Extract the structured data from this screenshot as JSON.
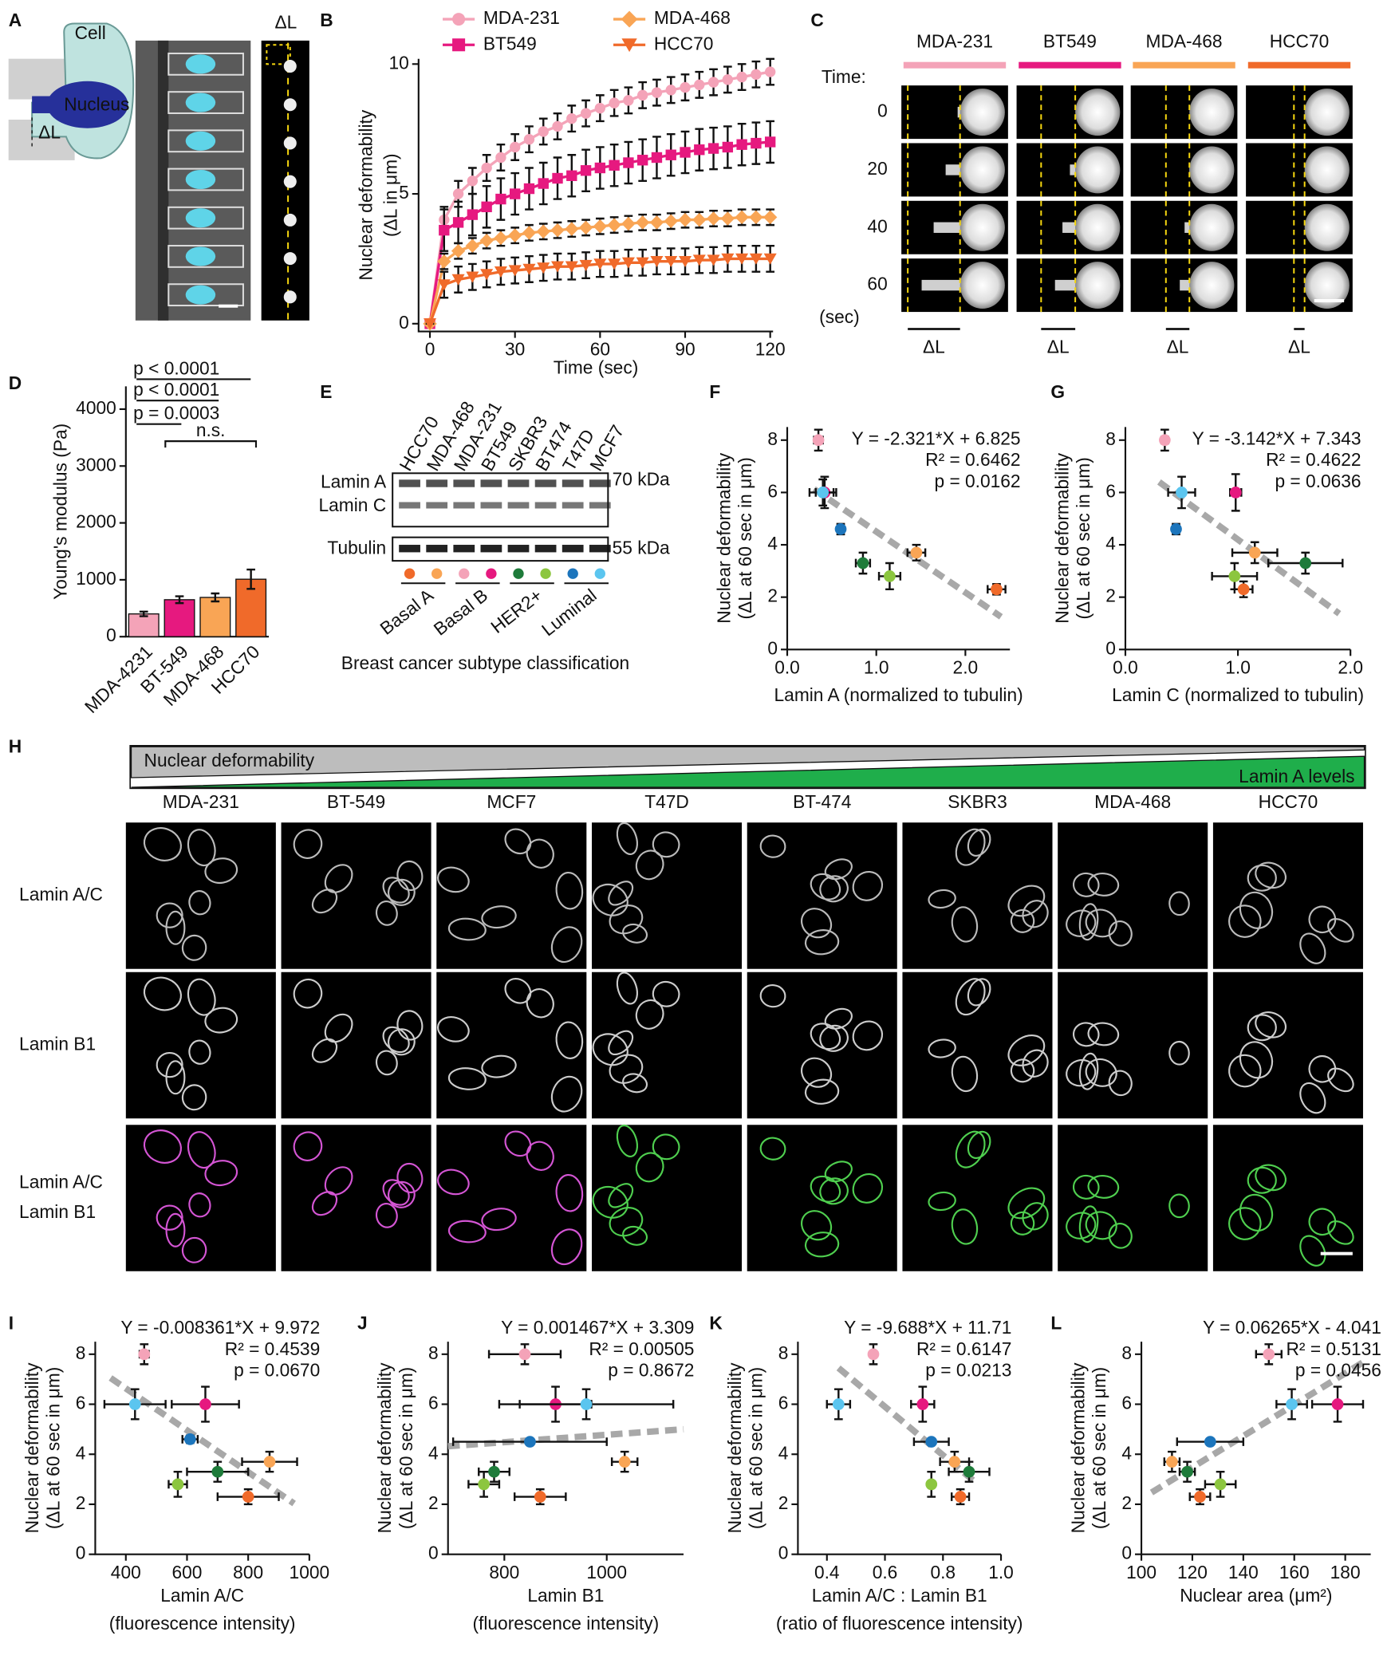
{
  "panel_labels": [
    "A",
    "B",
    "C",
    "D",
    "E",
    "F",
    "G",
    "H",
    "I",
    "J",
    "K",
    "L"
  ],
  "panel_a": {
    "cell": "Cell",
    "nucleus": "Nucleus",
    "delta_schematic": "ΔL",
    "delta_image": "ΔL"
  },
  "panel_c": {
    "columns": [
      {
        "name": "MDA-231",
        "color": "#f4a3b8"
      },
      {
        "name": "BT549",
        "color": "#e6197f"
      },
      {
        "name": "MDA-468",
        "color": "#f9a555"
      },
      {
        "name": "HCC70",
        "color": "#f06a2a"
      }
    ],
    "time_label": "Time:",
    "rows": [
      "0",
      "20",
      "40",
      "60"
    ],
    "unit_label": "(sec)",
    "delta_label": "ΔL"
  },
  "panel_e": {
    "lanes": [
      "HCC70",
      "MDA-468",
      "MDA-231",
      "BT549",
      "SKBR3",
      "BT474",
      "T47D",
      "MCF7"
    ],
    "lane_colors": [
      "#f06a2a",
      "#f9a555",
      "#f4a3b8",
      "#e6197f",
      "#1e7b3a",
      "#8cc63f",
      "#1c75bc",
      "#5bc5ef"
    ],
    "bands": [
      "Lamin A",
      "Lamin C",
      "Tubulin"
    ],
    "markers": [
      "70 kDa",
      "55 kDa"
    ],
    "subtypes": [
      "Basal A",
      "Basal B",
      "HER2+",
      "Luminal"
    ],
    "caption": "Breast cancer subtype classification"
  },
  "panel_h": {
    "gradient_top": "Nuclear deformability",
    "gradient_bottom": "Lamin A levels",
    "columns": [
      "MDA-231",
      "BT-549",
      "MCF7",
      "T47D",
      "BT-474",
      "SKBR3",
      "MDA-468",
      "HCC70"
    ],
    "row_labels": [
      [
        "Lamin A/C"
      ],
      [
        "Lamin B1"
      ],
      [
        "Lamin A/C",
        "Lamin B1"
      ]
    ]
  },
  "chart_data": [
    {
      "type": "line",
      "xlabel": [
        "Time (sec)"
      ],
      "ylabel": [
        "Nuclear deformability",
        "(ΔL in μm)"
      ],
      "x": [
        0,
        5,
        10,
        15,
        20,
        25,
        30,
        35,
        40,
        45,
        50,
        55,
        60,
        65,
        70,
        75,
        80,
        85,
        90,
        95,
        100,
        105,
        110,
        115,
        120
      ],
      "xlim": [
        -4,
        121
      ],
      "ylim": [
        -0.3,
        10.2
      ],
      "xticks": [
        0,
        30,
        60,
        90,
        120
      ],
      "yticks": [
        0,
        5,
        10
      ],
      "series": [
        {
          "name": "MDA-231",
          "color": "#f4a3b8",
          "marker": "circle",
          "values": [
            0,
            4.0,
            5.0,
            5.5,
            6.0,
            6.4,
            6.8,
            7.1,
            7.4,
            7.6,
            7.9,
            8.1,
            8.3,
            8.5,
            8.6,
            8.8,
            8.9,
            9.0,
            9.1,
            9.2,
            9.3,
            9.4,
            9.5,
            9.6,
            9.7
          ],
          "errors": [
            0,
            0.5,
            0.5,
            0.5,
            0.5,
            0.5,
            0.5,
            0.5,
            0.5,
            0.5,
            0.5,
            0.5,
            0.5,
            0.5,
            0.5,
            0.5,
            0.5,
            0.5,
            0.5,
            0.5,
            0.5,
            0.5,
            0.5,
            0.5,
            0.5
          ]
        },
        {
          "name": "BT549",
          "color": "#e6197f",
          "marker": "square",
          "values": [
            0,
            3.6,
            3.9,
            4.2,
            4.5,
            4.8,
            5.0,
            5.2,
            5.4,
            5.6,
            5.7,
            5.9,
            6.0,
            6.1,
            6.2,
            6.3,
            6.4,
            6.5,
            6.6,
            6.7,
            6.75,
            6.8,
            6.9,
            6.95,
            7.0
          ],
          "errors": [
            0,
            0.8,
            0.8,
            0.8,
            0.8,
            0.8,
            0.8,
            0.8,
            0.8,
            0.8,
            0.8,
            0.8,
            0.8,
            0.8,
            0.8,
            0.8,
            0.8,
            0.8,
            0.8,
            0.8,
            0.8,
            0.8,
            0.8,
            0.8,
            0.8
          ]
        },
        {
          "name": "MDA-468",
          "color": "#f9a555",
          "marker": "diamond",
          "values": [
            0,
            2.4,
            2.8,
            3.0,
            3.2,
            3.3,
            3.4,
            3.5,
            3.55,
            3.6,
            3.65,
            3.7,
            3.75,
            3.8,
            3.85,
            3.9,
            3.9,
            3.95,
            4.0,
            4.0,
            4.05,
            4.05,
            4.1,
            4.1,
            4.1
          ],
          "errors": [
            0,
            0.3,
            0.3,
            0.3,
            0.3,
            0.3,
            0.3,
            0.3,
            0.3,
            0.3,
            0.3,
            0.3,
            0.3,
            0.3,
            0.3,
            0.3,
            0.3,
            0.3,
            0.3,
            0.3,
            0.3,
            0.3,
            0.3,
            0.3,
            0.3
          ]
        },
        {
          "name": "HCC70",
          "color": "#f06a2a",
          "marker": "triangle-down",
          "values": [
            0,
            1.5,
            1.7,
            1.8,
            1.9,
            2.0,
            2.05,
            2.1,
            2.15,
            2.2,
            2.2,
            2.25,
            2.3,
            2.3,
            2.35,
            2.35,
            2.4,
            2.4,
            2.4,
            2.45,
            2.45,
            2.5,
            2.5,
            2.5,
            2.5
          ],
          "errors": [
            0,
            0.5,
            0.5,
            0.5,
            0.5,
            0.5,
            0.5,
            0.5,
            0.5,
            0.5,
            0.5,
            0.5,
            0.5,
            0.5,
            0.5,
            0.5,
            0.5,
            0.5,
            0.5,
            0.5,
            0.5,
            0.5,
            0.5,
            0.5,
            0.5
          ]
        }
      ]
    },
    {
      "type": "bar",
      "ylabel": [
        "Young's modulus (Pa)"
      ],
      "categories": [
        "MDA-4231",
        "BT-549",
        "MDA-468",
        "HCC70"
      ],
      "values": [
        400,
        650,
        690,
        1010
      ],
      "errors": [
        40,
        60,
        70,
        170
      ],
      "colors": [
        "#f4a3b8",
        "#e6197f",
        "#f9a555",
        "#f06a2a"
      ],
      "ylim": [
        0,
        4400
      ],
      "yticks": [
        0,
        1000,
        2000,
        3000,
        4000
      ],
      "annotations": [
        "p < 0.0001",
        "p < 0.0001",
        "p = 0.0003",
        "n.s."
      ]
    },
    {
      "type": "scatter",
      "xlabel": [
        "Lamin A (normalized to tubulin)"
      ],
      "ylabel": [
        "Nuclear deformability",
        "(ΔL at 60 sec in μm)"
      ],
      "equation": [
        "Y = -2.321*X + 6.825",
        "R² = 0.6462",
        "p = 0.0162"
      ],
      "xlim": [
        0,
        2.5
      ],
      "ylim": [
        0,
        8.5
      ],
      "xticks": [
        {
          "value": 0,
          "label": "0.0"
        },
        {
          "value": 1,
          "label": "1.0"
        },
        {
          "value": 2,
          "label": "2.0"
        }
      ],
      "yticks": [
        0,
        2,
        4,
        6,
        8
      ],
      "points": {
        "x": [
          0.35,
          0.42,
          0.4,
          0.6,
          0.85,
          1.15,
          1.45,
          2.35
        ],
        "y": [
          8.0,
          6.0,
          6.0,
          4.6,
          3.3,
          2.8,
          3.7,
          2.3
        ],
        "xerr": [
          0.05,
          0.1,
          0.15,
          0.03,
          0.08,
          0.12,
          0.1,
          0.1
        ],
        "yerr": [
          0.4,
          0.6,
          0.5,
          0.2,
          0.4,
          0.5,
          0.3,
          0.2
        ],
        "colors": [
          "#f4a3b8",
          "#e6197f",
          "#5bc5ef",
          "#1c75bc",
          "#1e7b3a",
          "#8cc63f",
          "#f9a555",
          "#f06a2a"
        ]
      },
      "trendline": {
        "x": [
          0.3,
          2.4
        ],
        "y": [
          6.13,
          1.25
        ]
      }
    },
    {
      "type": "scatter",
      "xlabel": [
        "Lamin C (normalized to tubulin)"
      ],
      "ylabel": [
        "Nuclear deformability",
        "(ΔL at 60 sec in μm)"
      ],
      "equation": [
        "Y = -3.142*X + 7.343",
        "R² = 0.4622",
        "p = 0.0636"
      ],
      "xlim": [
        0,
        2.0
      ],
      "ylim": [
        0,
        8.5
      ],
      "xticks": [
        {
          "value": 0,
          "label": "0.0"
        },
        {
          "value": 1,
          "label": "1.0"
        },
        {
          "value": 2,
          "label": "2.0"
        }
      ],
      "yticks": [
        0,
        2,
        4,
        6,
        8
      ],
      "points": {
        "x": [
          0.35,
          0.98,
          0.5,
          0.45,
          1.6,
          0.97,
          1.15,
          1.05
        ],
        "y": [
          8.0,
          6.0,
          6.0,
          4.6,
          3.3,
          2.8,
          3.7,
          2.3
        ],
        "xerr": [
          0.03,
          0.05,
          0.12,
          0.03,
          0.33,
          0.2,
          0.2,
          0.08
        ],
        "yerr": [
          0.4,
          0.7,
          0.6,
          0.2,
          0.4,
          0.5,
          0.4,
          0.3
        ],
        "colors": [
          "#f4a3b8",
          "#e6197f",
          "#5bc5ef",
          "#1c75bc",
          "#1e7b3a",
          "#8cc63f",
          "#f9a555",
          "#f06a2a"
        ]
      },
      "trendline": {
        "x": [
          0.3,
          1.9
        ],
        "y": [
          6.4,
          1.37
        ]
      }
    },
    {
      "type": "scatter",
      "xlabel": [
        "Lamin A/C",
        "(fluorescence intensity)"
      ],
      "ylabel": [
        "Nuclear deformability",
        "(ΔL at 60 sec in μm)"
      ],
      "equation": [
        "Y = -0.008361*X + 9.972",
        "R² = 0.4539",
        "p = 0.0670"
      ],
      "xlim": [
        300,
        1000
      ],
      "ylim": [
        0,
        8.5
      ],
      "xticks": [
        400,
        600,
        800,
        1000
      ],
      "yticks": [
        0,
        2,
        4,
        6,
        8
      ],
      "points": {
        "x": [
          460,
          660,
          430,
          610,
          700,
          570,
          870,
          800
        ],
        "y": [
          8.0,
          6.0,
          6.0,
          4.6,
          3.3,
          2.8,
          3.7,
          2.3
        ],
        "xerr": [
          15,
          110,
          100,
          25,
          100,
          30,
          90,
          100
        ],
        "yerr": [
          0.4,
          0.7,
          0.6,
          0.15,
          0.4,
          0.5,
          0.4,
          0.3
        ],
        "colors": [
          "#f4a3b8",
          "#e6197f",
          "#5bc5ef",
          "#1c75bc",
          "#1e7b3a",
          "#8cc63f",
          "#f9a555",
          "#f06a2a"
        ]
      },
      "trendline": {
        "x": [
          350,
          950
        ],
        "y": [
          7.05,
          2.03
        ]
      }
    },
    {
      "type": "scatter",
      "xlabel": [
        "Lamin B1",
        "(fluorescence intensity)"
      ],
      "ylabel": [
        "Nuclear deformability",
        "(ΔL at 60 sec in μm)"
      ],
      "equation": [
        "Y = 0.001467*X + 3.309",
        "R² = 0.00505",
        "p = 0.8672"
      ],
      "xlim": [
        690,
        1150
      ],
      "ylim": [
        0,
        8.5
      ],
      "xticks": [
        800,
        1000
      ],
      "yticks": [
        0,
        2,
        4,
        6,
        8
      ],
      "points": {
        "x": [
          840,
          900,
          960,
          850,
          780,
          760,
          1035,
          870
        ],
        "y": [
          8.0,
          6.0,
          6.0,
          4.5,
          3.3,
          2.8,
          3.7,
          2.3
        ],
        "xerr": [
          70,
          70,
          170,
          150,
          30,
          30,
          25,
          50
        ],
        "yerr": [
          0.4,
          0.7,
          0.6,
          0.1,
          0.4,
          0.5,
          0.4,
          0.3
        ],
        "colors": [
          "#f4a3b8",
          "#e6197f",
          "#5bc5ef",
          "#1c75bc",
          "#1e7b3a",
          "#8cc63f",
          "#f9a555",
          "#f06a2a"
        ]
      },
      "trendline": {
        "x": [
          690,
          1150
        ],
        "y": [
          4.32,
          5.0
        ]
      }
    },
    {
      "type": "scatter",
      "xlabel": [
        "Lamin A/C : Lamin B1",
        "(ratio of fluorescence intensity)"
      ],
      "ylabel": [
        "Nuclear deformability",
        "(ΔL at 60 sec in μm)"
      ],
      "equation": [
        "Y = -9.688*X + 11.71",
        "R² = 0.6147",
        "p = 0.0213"
      ],
      "xlim": [
        0.3,
        1.0
      ],
      "ylim": [
        0,
        8.5
      ],
      "xticks": [
        0.4,
        0.6,
        0.8,
        {
          "value": 1,
          "label": "1.0"
        }
      ],
      "yticks": [
        0,
        2,
        4,
        6,
        8
      ],
      "points": {
        "x": [
          0.56,
          0.73,
          0.44,
          0.76,
          0.89,
          0.76,
          0.84,
          0.86
        ],
        "y": [
          8.0,
          6.0,
          6.0,
          4.5,
          3.3,
          2.8,
          3.7,
          2.3
        ],
        "xerr": [
          0.01,
          0.04,
          0.04,
          0.06,
          0.07,
          0.01,
          0.05,
          0.03
        ],
        "yerr": [
          0.4,
          0.7,
          0.6,
          0.1,
          0.4,
          0.5,
          0.4,
          0.3
        ],
        "colors": [
          "#f4a3b8",
          "#e6197f",
          "#5bc5ef",
          "#1c75bc",
          "#1e7b3a",
          "#8cc63f",
          "#f9a555",
          "#f06a2a"
        ]
      },
      "trendline": {
        "x": [
          0.44,
          0.92
        ],
        "y": [
          7.45,
          2.8
        ]
      }
    },
    {
      "type": "scatter",
      "xlabel": [
        "Nuclear area (μm²)"
      ],
      "ylabel": [
        "Nuclear deformability",
        "(ΔL at 60 sec in μm)"
      ],
      "equation": [
        "Y = 0.06265*X - 4.041",
        "R² = 0.5131",
        "p = 0.0456"
      ],
      "xlim": [
        100,
        190
      ],
      "ylim": [
        0,
        8.5
      ],
      "xticks": [
        100,
        120,
        140,
        160,
        180
      ],
      "yticks": [
        0,
        2,
        4,
        6,
        8
      ],
      "points": {
        "x": [
          150,
          177,
          159,
          127,
          118,
          131,
          112,
          123
        ],
        "y": [
          8.0,
          6.0,
          6.0,
          4.5,
          3.3,
          2.8,
          3.7,
          2.3
        ],
        "xerr": [
          5,
          10,
          6,
          13,
          3,
          6,
          3,
          4
        ],
        "yerr": [
          0.4,
          0.7,
          0.6,
          0.1,
          0.4,
          0.5,
          0.4,
          0.3
        ],
        "colors": [
          "#f4a3b8",
          "#e6197f",
          "#5bc5ef",
          "#1c75bc",
          "#1e7b3a",
          "#8cc63f",
          "#f9a555",
          "#f06a2a"
        ]
      },
      "trendline": {
        "x": [
          104,
          188
        ],
        "y": [
          2.47,
          7.74
        ]
      }
    }
  ]
}
